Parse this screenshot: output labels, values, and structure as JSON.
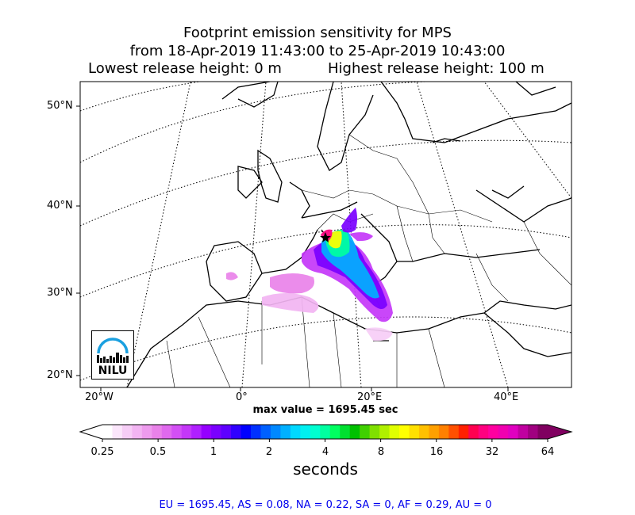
{
  "title": {
    "line1": "Footprint emission sensitivity for MPS",
    "line2": "from 18-Apr-2019 11:43:00 to 25-Apr-2019 10:43:00",
    "line3_left": "Lowest release height: 0 m",
    "line3_right": "Highest release height: 100 m"
  },
  "map": {
    "lat_labels": [
      "50°N",
      "40°N",
      "30°N",
      "20°N"
    ],
    "lon_labels": [
      "20°W",
      "0°",
      "20°E",
      "40°E"
    ],
    "max_value_text": "max value = 1695.45 sec",
    "logo_text": "NILU",
    "logo_icon": "nilu-logo"
  },
  "colorbar": {
    "tick_labels": [
      "0.25",
      "0.5",
      "1",
      "2",
      "4",
      "8",
      "16",
      "32",
      "64"
    ],
    "label": "seconds",
    "colors": [
      "#ffffff",
      "#fbe6fb",
      "#f6cdf6",
      "#f2b4f2",
      "#ee9bee",
      "#e982e9",
      "#e069ee",
      "#d34ff5",
      "#c437f8",
      "#b020ff",
      "#9500ff",
      "#7a00ff",
      "#5e00ff",
      "#3000ff",
      "#0000ff",
      "#0030ff",
      "#0060ff",
      "#0088ff",
      "#00b0ff",
      "#00d8ff",
      "#00f0f0",
      "#00ffd0",
      "#00ffa0",
      "#00ff60",
      "#00e030",
      "#00c000",
      "#40d000",
      "#80e000",
      "#b0f000",
      "#e0ff00",
      "#ffff00",
      "#ffe000",
      "#ffc000",
      "#ffa000",
      "#ff8000",
      "#ff5000",
      "#ff2000",
      "#ff0050",
      "#ff0080",
      "#ff00a0",
      "#f000b0",
      "#e000c0",
      "#c000a0",
      "#a00080",
      "#800060"
    ]
  },
  "summary": "EU = 1695.45,  AS = 0.08,  NA = 0.22,  SA = 0,  AF = 0.29,  AU = 0"
}
